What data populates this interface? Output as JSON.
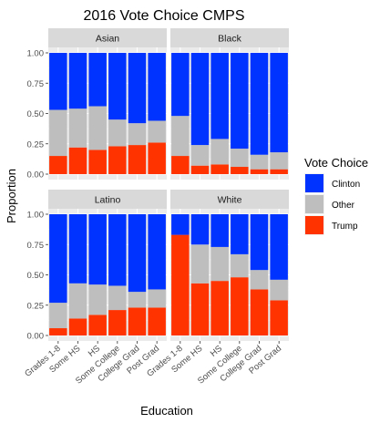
{
  "chart_data": {
    "type": "bar",
    "stacked": true,
    "title": "2016 Vote Choice CMPS",
    "xlabel": "Education",
    "ylabel": "Proportion",
    "ylim": [
      0,
      1
    ],
    "yticks": [
      "0.00",
      "0.25",
      "0.50",
      "0.75",
      "1.00"
    ],
    "categories": [
      "Grades 1-8",
      "Some HS",
      "HS",
      "Some College",
      "College Grad",
      "Post Grad"
    ],
    "legend": {
      "title": "Vote Choice",
      "position": "right",
      "entries": [
        {
          "name": "Clinton",
          "color": "#0033FF"
        },
        {
          "name": "Other",
          "color": "#BEBEBE"
        },
        {
          "name": "Trump",
          "color": "#FF3300"
        }
      ]
    },
    "grid": true,
    "panels": [
      {
        "name": "Asian",
        "series": [
          {
            "name": "Trump",
            "values": [
              0.15,
              0.22,
              0.2,
              0.23,
              0.24,
              0.26
            ]
          },
          {
            "name": "Other",
            "values": [
              0.38,
              0.32,
              0.36,
              0.22,
              0.18,
              0.18
            ]
          },
          {
            "name": "Clinton",
            "values": [
              0.47,
              0.46,
              0.44,
              0.55,
              0.58,
              0.56
            ]
          }
        ]
      },
      {
        "name": "Black",
        "series": [
          {
            "name": "Trump",
            "values": [
              0.15,
              0.07,
              0.08,
              0.06,
              0.04,
              0.04
            ]
          },
          {
            "name": "Other",
            "values": [
              0.33,
              0.17,
              0.21,
              0.15,
              0.12,
              0.14
            ]
          },
          {
            "name": "Clinton",
            "values": [
              0.52,
              0.76,
              0.71,
              0.79,
              0.84,
              0.82
            ]
          }
        ]
      },
      {
        "name": "Latino",
        "series": [
          {
            "name": "Trump",
            "values": [
              0.06,
              0.14,
              0.17,
              0.21,
              0.23,
              0.23
            ]
          },
          {
            "name": "Other",
            "values": [
              0.21,
              0.29,
              0.25,
              0.2,
              0.13,
              0.15
            ]
          },
          {
            "name": "Clinton",
            "values": [
              0.73,
              0.57,
              0.58,
              0.59,
              0.64,
              0.62
            ]
          }
        ]
      },
      {
        "name": "White",
        "series": [
          {
            "name": "Trump",
            "values": [
              0.83,
              0.43,
              0.45,
              0.48,
              0.38,
              0.29
            ]
          },
          {
            "name": "Other",
            "values": [
              0.0,
              0.32,
              0.28,
              0.19,
              0.16,
              0.17
            ]
          },
          {
            "name": "Clinton",
            "values": [
              0.17,
              0.25,
              0.27,
              0.33,
              0.46,
              0.54
            ]
          }
        ]
      }
    ]
  }
}
